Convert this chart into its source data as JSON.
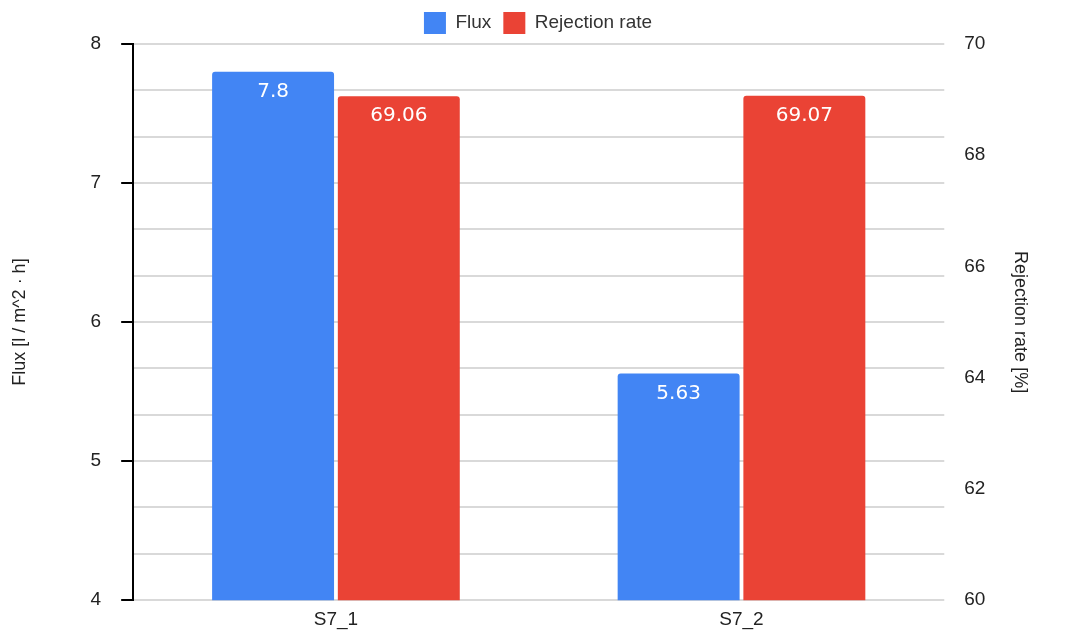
{
  "chart_data": {
    "type": "bar",
    "categories": [
      "S7_1",
      "S7_2"
    ],
    "series": [
      {
        "name": "Flux",
        "color": "#4285f4",
        "values": [
          7.8,
          5.63
        ]
      },
      {
        "name": "Rejection rate",
        "color": "#ea4335",
        "values": [
          69.06,
          69.07
        ],
        "axis": "y2"
      }
    ],
    "ylabel": "Flux [l / m^2 · h]",
    "y2label": "Rejection rate [%]",
    "ylim": [
      4,
      8
    ],
    "yticks": [
      4,
      {
        "value": 4.333,
        "label": null
      },
      {
        "value": 4.667,
        "label": null
      },
      5,
      {
        "value": 5.333,
        "label": null
      },
      {
        "value": 5.667,
        "label": null
      },
      6,
      {
        "value": 6.333,
        "label": null
      },
      {
        "value": 6.667,
        "label": null
      },
      7,
      {
        "value": 7.333,
        "label": null
      },
      {
        "value": 7.667,
        "label": null
      },
      8
    ],
    "y2lim": [
      60,
      70
    ],
    "y2ticks": [
      60,
      62,
      64,
      66,
      68,
      70
    ],
    "grid": "y",
    "legend": "top",
    "data_labels": true
  }
}
